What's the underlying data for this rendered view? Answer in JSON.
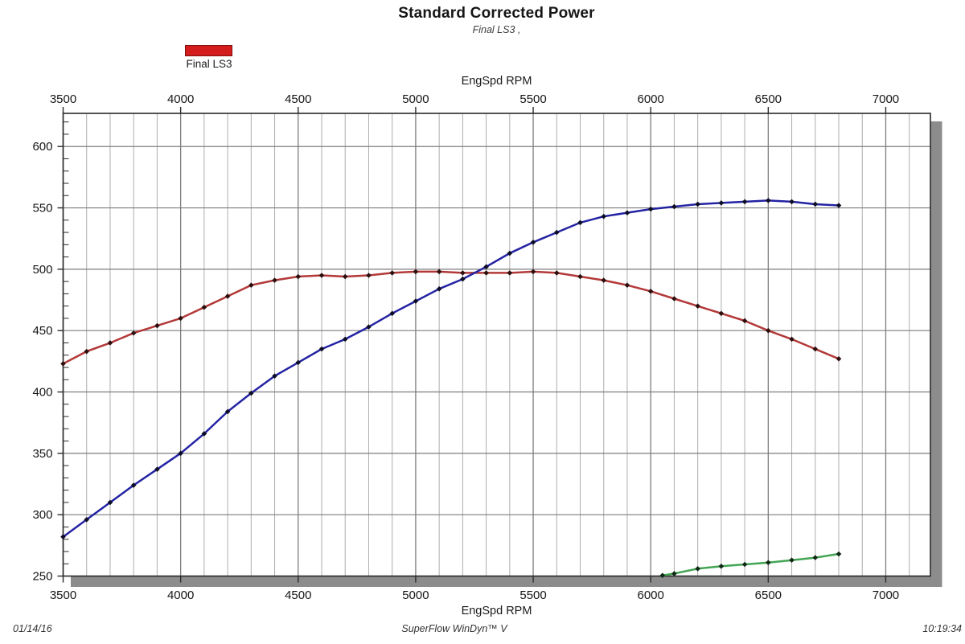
{
  "header": {
    "title": "Standard Corrected Power",
    "subtitle": "Final LS3 ,"
  },
  "legend": {
    "position": "top-left",
    "items": [
      {
        "label": "Final LS3",
        "color": "#d51c1c",
        "border_color": "#7e1010"
      }
    ]
  },
  "footer": {
    "date": "01/14/16",
    "app": "SuperFlow WinDyn™ V",
    "time": "10:19:34"
  },
  "chart_data": {
    "type": "line",
    "title": "Standard Corrected Power",
    "subtitle": "Final LS3 ,",
    "xlabel": "EngSpd RPM",
    "ylabel": "",
    "x_range": [
      3500,
      7190
    ],
    "y_range": [
      250,
      627
    ],
    "x_major_ticks": [
      3500,
      4000,
      4500,
      5000,
      5500,
      6000,
      6500,
      7000
    ],
    "x_minor_step": 100,
    "y_major_ticks": [
      250,
      300,
      350,
      400,
      450,
      500,
      550,
      600
    ],
    "y_minor_step": 10,
    "grid": true,
    "legend_position": "top-left",
    "colors": {
      "grid_minor": "#adadad",
      "grid_major": "#7d7d7d",
      "frame": "#2a2a2a",
      "shadow": "#8c8c8c"
    },
    "series": [
      {
        "name": "red",
        "legend_label": "Final LS3",
        "color": "#b33939",
        "marker_color": "#2e0f0f",
        "x": [
          3500,
          3600,
          3700,
          3800,
          3900,
          4000,
          4100,
          4200,
          4300,
          4400,
          4500,
          4600,
          4700,
          4800,
          4900,
          5000,
          5100,
          5200,
          5300,
          5400,
          5500,
          5600,
          5700,
          5800,
          5900,
          6000,
          6100,
          6200,
          6300,
          6400,
          6500,
          6600,
          6700,
          6800
        ],
        "values": [
          423,
          433,
          440,
          448,
          454,
          460,
          469,
          478,
          487,
          491,
          494,
          495,
          494,
          495,
          497,
          498,
          498,
          497,
          497,
          497,
          498,
          497,
          494,
          491,
          487,
          482,
          476,
          470,
          464,
          458,
          450,
          443,
          435,
          427
        ]
      },
      {
        "name": "blue",
        "legend_label": null,
        "color": "#2323a3",
        "marker_color": "#0d0d26",
        "x": [
          3500,
          3600,
          3700,
          3800,
          3900,
          4000,
          4100,
          4200,
          4300,
          4400,
          4500,
          4600,
          4700,
          4800,
          4900,
          5000,
          5100,
          5200,
          5300,
          5400,
          5500,
          5600,
          5700,
          5800,
          5900,
          6000,
          6100,
          6200,
          6300,
          6400,
          6500,
          6600,
          6700,
          6800
        ],
        "values": [
          282,
          296,
          310,
          324,
          337,
          350,
          366,
          384,
          399,
          413,
          424,
          435,
          443,
          453,
          464,
          474,
          484,
          492,
          502,
          513,
          522,
          530,
          538,
          543,
          546,
          549,
          551,
          553,
          554,
          555,
          556,
          555,
          553,
          552
        ]
      },
      {
        "name": "green",
        "legend_label": null,
        "color": "#43a553",
        "marker_color": "#0f2a14",
        "x": [
          6050,
          6100,
          6200,
          6300,
          6400,
          6500,
          6600,
          6700,
          6800
        ],
        "values": [
          250.5,
          252,
          256,
          258,
          259.5,
          261,
          263,
          265,
          268
        ]
      }
    ]
  }
}
